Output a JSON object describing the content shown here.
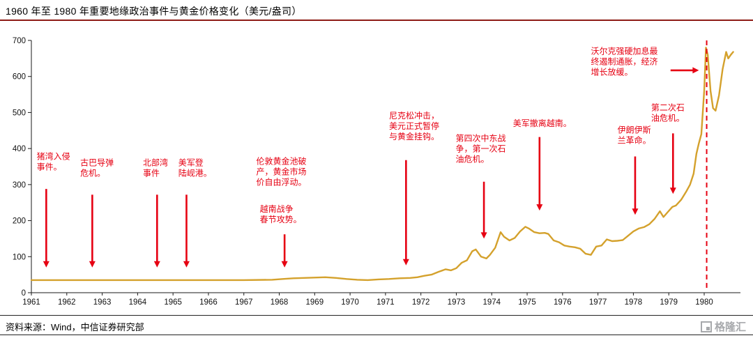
{
  "title": "1960 年至 1980 年重要地缘政治事件与黄金价格变化（美元/盎司）",
  "footer": {
    "source": "资料来源：Wind，中信证券研究部",
    "logo_text": "格隆汇"
  },
  "colors": {
    "accent_rule": "#8E1B15",
    "line": "#D4A12C",
    "annotation": "#E60012",
    "axis": "#1a1a1a"
  },
  "chart_data": {
    "type": "line",
    "title": "1960 年至 1980 年重要地缘政治事件与黄金价格变化（美元/盎司）",
    "ylabel": "美元/盎司",
    "ylim": [
      0,
      700
    ],
    "yticks": [
      0,
      100,
      200,
      300,
      400,
      500,
      600,
      700
    ],
    "xticks": [
      1961,
      1962,
      1963,
      1964,
      1965,
      1966,
      1967,
      1968,
      1969,
      1970,
      1971,
      1972,
      1973,
      1974,
      1975,
      1976,
      1977,
      1978,
      1979,
      1980
    ],
    "grid": false,
    "legend": false,
    "vline_x": 1980.07,
    "series": [
      {
        "points": [
          [
            1961,
            35
          ],
          [
            1962,
            35
          ],
          [
            1963,
            35
          ],
          [
            1964,
            35
          ],
          [
            1965,
            35
          ],
          [
            1966,
            35
          ],
          [
            1967,
            35
          ],
          [
            1967.8,
            36
          ],
          [
            1968.1,
            38
          ],
          [
            1968.4,
            40
          ],
          [
            1968.7,
            41
          ],
          [
            1969.0,
            42
          ],
          [
            1969.3,
            43
          ],
          [
            1969.6,
            41
          ],
          [
            1969.9,
            38
          ],
          [
            1970.2,
            36
          ],
          [
            1970.5,
            35
          ],
          [
            1970.8,
            37
          ],
          [
            1971.1,
            38
          ],
          [
            1971.4,
            40
          ],
          [
            1971.7,
            41
          ],
          [
            1971.9,
            43
          ],
          [
            1972.1,
            47
          ],
          [
            1972.3,
            50
          ],
          [
            1972.5,
            58
          ],
          [
            1972.7,
            65
          ],
          [
            1972.85,
            62
          ],
          [
            1973.0,
            68
          ],
          [
            1973.15,
            83
          ],
          [
            1973.3,
            90
          ],
          [
            1973.45,
            115
          ],
          [
            1973.55,
            120
          ],
          [
            1973.7,
            100
          ],
          [
            1973.85,
            95
          ],
          [
            1973.95,
            105
          ],
          [
            1974.1,
            125
          ],
          [
            1974.25,
            168
          ],
          [
            1974.35,
            155
          ],
          [
            1974.5,
            145
          ],
          [
            1974.65,
            152
          ],
          [
            1974.8,
            170
          ],
          [
            1974.95,
            183
          ],
          [
            1975.05,
            178
          ],
          [
            1975.2,
            168
          ],
          [
            1975.35,
            165
          ],
          [
            1975.5,
            166
          ],
          [
            1975.6,
            163
          ],
          [
            1975.75,
            145
          ],
          [
            1975.9,
            140
          ],
          [
            1976.05,
            131
          ],
          [
            1976.2,
            128
          ],
          [
            1976.35,
            126
          ],
          [
            1976.5,
            122
          ],
          [
            1976.65,
            108
          ],
          [
            1976.8,
            105
          ],
          [
            1976.95,
            128
          ],
          [
            1977.1,
            131
          ],
          [
            1977.25,
            148
          ],
          [
            1977.4,
            143
          ],
          [
            1977.55,
            144
          ],
          [
            1977.7,
            146
          ],
          [
            1977.85,
            158
          ],
          [
            1978.0,
            170
          ],
          [
            1978.15,
            178
          ],
          [
            1978.3,
            182
          ],
          [
            1978.45,
            190
          ],
          [
            1978.6,
            205
          ],
          [
            1978.75,
            226
          ],
          [
            1978.85,
            210
          ],
          [
            1979.0,
            227
          ],
          [
            1979.1,
            238
          ],
          [
            1979.2,
            242
          ],
          [
            1979.35,
            258
          ],
          [
            1979.5,
            282
          ],
          [
            1979.6,
            300
          ],
          [
            1979.7,
            330
          ],
          [
            1979.78,
            385
          ],
          [
            1979.85,
            415
          ],
          [
            1979.92,
            440
          ],
          [
            1980.0,
            560
          ],
          [
            1980.05,
            680
          ],
          [
            1980.1,
            660
          ],
          [
            1980.18,
            560
          ],
          [
            1980.25,
            512
          ],
          [
            1980.32,
            505
          ],
          [
            1980.42,
            548
          ],
          [
            1980.52,
            620
          ],
          [
            1980.62,
            668
          ],
          [
            1980.68,
            650
          ],
          [
            1980.75,
            660
          ],
          [
            1980.82,
            668
          ]
        ]
      }
    ],
    "annotations": [
      {
        "lines": [
          "猪湾入侵",
          "事件。"
        ],
        "tx": 1961.15,
        "ty": 392,
        "dir": "down",
        "arrow": {
          "x": 1961.42,
          "y1": 288,
          "y2": 70
        }
      },
      {
        "lines": [
          "古巴导弹",
          "危机。"
        ],
        "tx": 1962.38,
        "ty": 374,
        "dir": "down",
        "arrow": {
          "x": 1962.72,
          "y1": 272,
          "y2": 70
        }
      },
      {
        "lines": [
          "北部湾",
          "事件"
        ],
        "tx": 1964.15,
        "ty": 374,
        "dir": "down",
        "arrow": {
          "x": 1964.55,
          "y1": 272,
          "y2": 70
        }
      },
      {
        "lines": [
          "美军登",
          "陆岘港。"
        ],
        "tx": 1965.15,
        "ty": 374,
        "dir": "down",
        "arrow": {
          "x": 1965.38,
          "y1": 272,
          "y2": 70
        }
      },
      {
        "lines": [
          "伦敦黄金池破",
          "产，黄金市场",
          "价自由浮动。"
        ],
        "tx": 1967.35,
        "ty": 378,
        "dir": "down",
        "arrow": {
          "x": 1968.15,
          "y1": 162,
          "y2": 70
        }
      },
      {
        "lines": [
          "越南战争",
          "春节攻势。"
        ],
        "tx": 1967.45,
        "ty": 246,
        "dir": "down",
        "arrow": null
      },
      {
        "lines": [
          "尼克松冲击，",
          "美元正式暂停",
          "与黄金挂钩。"
        ],
        "tx": 1971.1,
        "ty": 505,
        "dir": "down",
        "arrow": {
          "x": 1971.58,
          "y1": 368,
          "y2": 76
        }
      },
      {
        "lines": [
          "第四次中东战",
          "争，第一次石",
          "油危机。"
        ],
        "tx": 1972.98,
        "ty": 442,
        "dir": "down",
        "arrow": {
          "x": 1973.78,
          "y1": 308,
          "y2": 150
        }
      },
      {
        "lines": [
          "美军撤离越南。"
        ],
        "tx": 1974.6,
        "ty": 483,
        "dir": "down",
        "arrow": {
          "x": 1975.35,
          "y1": 432,
          "y2": 228
        }
      },
      {
        "lines": [
          "沃尔克强硬加息最",
          "终遏制通胀，经济",
          "增长放缓。"
        ],
        "tx": 1976.8,
        "ty": 684,
        "dir": "right",
        "arrow": {
          "x1": 1979.05,
          "x2": 1979.85,
          "y": 617
        }
      },
      {
        "lines": [
          "伊朗伊斯",
          "兰革命。"
        ],
        "tx": 1977.55,
        "ty": 465,
        "dir": "down",
        "arrow": {
          "x": 1978.05,
          "y1": 378,
          "y2": 216
        }
      },
      {
        "lines": [
          "第二次石",
          "油危机。"
        ],
        "tx": 1978.5,
        "ty": 527,
        "dir": "down",
        "arrow": {
          "x": 1979.12,
          "y1": 442,
          "y2": 274
        }
      }
    ]
  }
}
